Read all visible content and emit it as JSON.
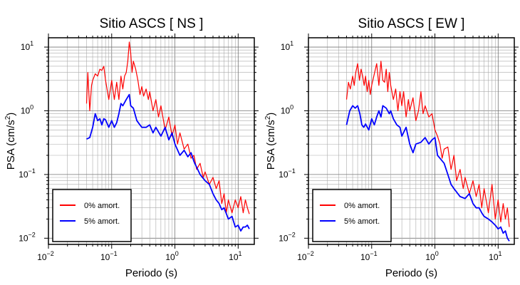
{
  "chart_data": [
    {
      "type": "line",
      "title": "Sitio ASCS [ NS ]",
      "xlabel": "Periodo (s)",
      "ylabel": "PSA (cm/s",
      "ylabel_sup": "2",
      "ylabel_tail": ")",
      "xscale": "log",
      "yscale": "log",
      "xlim": [
        0.01,
        18
      ],
      "ylim": [
        0.008,
        14
      ],
      "grid": true,
      "legend_position": "lower-left",
      "x_tick_labels": [
        {
          "value": 0.01,
          "base": "10",
          "exp": "−2"
        },
        {
          "value": 0.1,
          "base": "10",
          "exp": "−1"
        },
        {
          "value": 1,
          "base": "10",
          "exp": "0"
        },
        {
          "value": 10,
          "base": "10",
          "exp": "1"
        }
      ],
      "y_tick_labels": [
        {
          "value": 0.01,
          "base": "10",
          "exp": "−2"
        },
        {
          "value": 0.1,
          "base": "10",
          "exp": "−1"
        },
        {
          "value": 1,
          "base": "10",
          "exp": "0"
        },
        {
          "value": 10,
          "base": "10",
          "exp": "1"
        }
      ],
      "series": [
        {
          "name": "0% amort.",
          "color": "#ff0000",
          "x": [
            0.04,
            0.042,
            0.045,
            0.048,
            0.05,
            0.055,
            0.06,
            0.065,
            0.07,
            0.075,
            0.08,
            0.09,
            0.1,
            0.11,
            0.12,
            0.13,
            0.14,
            0.15,
            0.16,
            0.17,
            0.18,
            0.19,
            0.2,
            0.21,
            0.22,
            0.24,
            0.26,
            0.28,
            0.3,
            0.32,
            0.35,
            0.38,
            0.4,
            0.45,
            0.5,
            0.55,
            0.6,
            0.7,
            0.8,
            0.9,
            1.0,
            1.1,
            1.2,
            1.4,
            1.6,
            1.8,
            2.0,
            2.2,
            2.5,
            2.8,
            3.0,
            3.5,
            4.0,
            4.5,
            5.0,
            5.5,
            6.0,
            6.5,
            7.0,
            8.0,
            9.0,
            10.0,
            11.0,
            12.0,
            13.0,
            14.0,
            15.0
          ],
          "y": [
            1.3,
            4.0,
            1.0,
            2.5,
            3.0,
            3.8,
            3.5,
            4.5,
            4.3,
            5.0,
            3.0,
            1.5,
            3.0,
            1.5,
            2.8,
            1.5,
            3.5,
            2.2,
            3.5,
            4.0,
            6.0,
            12.0,
            8.0,
            4.0,
            6.0,
            4.5,
            3.0,
            1.8,
            2.4,
            1.7,
            2.2,
            1.5,
            2.0,
            1.0,
            1.5,
            0.8,
            1.2,
            0.5,
            0.8,
            0.4,
            0.6,
            0.3,
            0.45,
            0.25,
            0.3,
            0.18,
            0.2,
            0.12,
            0.15,
            0.09,
            0.11,
            0.07,
            0.09,
            0.06,
            0.08,
            0.035,
            0.05,
            0.025,
            0.04,
            0.025,
            0.04,
            0.03,
            0.045,
            0.025,
            0.04,
            0.03,
            0.024
          ]
        },
        {
          "name": "5% amort.",
          "color": "#0000ff",
          "x": [
            0.04,
            0.045,
            0.05,
            0.055,
            0.06,
            0.065,
            0.07,
            0.075,
            0.08,
            0.09,
            0.1,
            0.11,
            0.12,
            0.13,
            0.14,
            0.15,
            0.17,
            0.19,
            0.2,
            0.22,
            0.25,
            0.28,
            0.3,
            0.35,
            0.4,
            0.45,
            0.5,
            0.6,
            0.7,
            0.8,
            0.9,
            1.0,
            1.2,
            1.4,
            1.6,
            1.8,
            2.0,
            2.5,
            3.0,
            3.5,
            4.0,
            4.5,
            5.0,
            5.5,
            6.0,
            7.0,
            8.0,
            9.0,
            10.0,
            11.0,
            12.0,
            13.0,
            14.0,
            15.0
          ],
          "y": [
            0.36,
            0.38,
            0.55,
            0.9,
            0.7,
            0.75,
            0.6,
            0.75,
            0.72,
            0.55,
            0.7,
            0.55,
            0.65,
            0.9,
            1.3,
            1.2,
            1.5,
            1.8,
            1.2,
            1.1,
            0.7,
            0.6,
            0.55,
            0.55,
            0.6,
            0.45,
            0.55,
            0.4,
            0.55,
            0.35,
            0.45,
            0.3,
            0.2,
            0.24,
            0.19,
            0.22,
            0.16,
            0.1,
            0.08,
            0.07,
            0.05,
            0.04,
            0.035,
            0.028,
            0.03,
            0.02,
            0.022,
            0.015,
            0.016,
            0.013,
            0.015,
            0.015,
            0.016,
            0.014
          ]
        }
      ]
    },
    {
      "type": "line",
      "title": "Sitio ASCS [ EW ]",
      "xlabel": "Periodo (s)",
      "ylabel": "PSA (cm/s",
      "ylabel_sup": "2",
      "ylabel_tail": ")",
      "xscale": "log",
      "yscale": "log",
      "xlim": [
        0.01,
        18
      ],
      "ylim": [
        0.008,
        14
      ],
      "grid": true,
      "legend_position": "lower-left",
      "x_tick_labels": [
        {
          "value": 0.01,
          "base": "10",
          "exp": "−2"
        },
        {
          "value": 0.1,
          "base": "10",
          "exp": "−1"
        },
        {
          "value": 1,
          "base": "10",
          "exp": "0"
        },
        {
          "value": 10,
          "base": "10",
          "exp": "1"
        }
      ],
      "y_tick_labels": [
        {
          "value": 0.01,
          "base": "10",
          "exp": "−2"
        },
        {
          "value": 0.1,
          "base": "10",
          "exp": "−1"
        },
        {
          "value": 1,
          "base": "10",
          "exp": "0"
        },
        {
          "value": 10,
          "base": "10",
          "exp": "1"
        }
      ],
      "series": [
        {
          "name": "0% amort.",
          "color": "#ff0000",
          "x": [
            0.04,
            0.043,
            0.046,
            0.05,
            0.053,
            0.056,
            0.06,
            0.064,
            0.068,
            0.072,
            0.076,
            0.08,
            0.085,
            0.09,
            0.095,
            0.1,
            0.11,
            0.12,
            0.13,
            0.14,
            0.15,
            0.16,
            0.17,
            0.18,
            0.19,
            0.2,
            0.22,
            0.24,
            0.26,
            0.28,
            0.3,
            0.32,
            0.35,
            0.38,
            0.4,
            0.45,
            0.5,
            0.55,
            0.6,
            0.65,
            0.7,
            0.8,
            0.9,
            1.0,
            1.1,
            1.2,
            1.3,
            1.4,
            1.6,
            1.8,
            2.0,
            2.2,
            2.5,
            2.8,
            3.0,
            3.5,
            4.0,
            4.5,
            5.0,
            5.5,
            6.0,
            7.0,
            8.0,
            9.0,
            10.0,
            11.0,
            12.0,
            13.0,
            14.0,
            15.0
          ],
          "y": [
            1.5,
            2.8,
            2.2,
            3.5,
            2.5,
            4.0,
            5.5,
            3.0,
            4.5,
            3.5,
            2.5,
            3.5,
            2.0,
            3.0,
            1.8,
            2.5,
            3.8,
            5.5,
            2.5,
            6.0,
            3.0,
            2.8,
            4.5,
            2.0,
            4.0,
            2.5,
            1.5,
            2.2,
            1.0,
            2.0,
            1.2,
            2.0,
            0.8,
            1.5,
            1.0,
            1.6,
            0.7,
            1.0,
            2.0,
            0.9,
            1.2,
            0.8,
            0.9,
            0.5,
            0.4,
            0.3,
            0.18,
            0.25,
            0.27,
            0.12,
            0.2,
            0.08,
            0.12,
            0.06,
            0.09,
            0.05,
            0.08,
            0.045,
            0.07,
            0.03,
            0.06,
            0.025,
            0.07,
            0.02,
            0.04,
            0.018,
            0.035,
            0.02,
            0.03,
            0.015
          ]
        },
        {
          "name": "5% amort.",
          "color": "#0000ff",
          "x": [
            0.04,
            0.045,
            0.05,
            0.055,
            0.06,
            0.065,
            0.07,
            0.075,
            0.08,
            0.09,
            0.1,
            0.11,
            0.12,
            0.13,
            0.14,
            0.15,
            0.17,
            0.19,
            0.2,
            0.22,
            0.25,
            0.28,
            0.3,
            0.35,
            0.4,
            0.45,
            0.5,
            0.6,
            0.7,
            0.8,
            0.9,
            1.0,
            1.1,
            1.2,
            1.4,
            1.6,
            1.8,
            2.0,
            2.5,
            3.0,
            3.5,
            4.0,
            4.5,
            5.0,
            5.5,
            6.0,
            7.0,
            8.0,
            9.0,
            10.0,
            11.0,
            12.0,
            13.0,
            14.0,
            15.0
          ],
          "y": [
            0.6,
            1.0,
            1.2,
            1.1,
            1.2,
            0.9,
            0.6,
            0.55,
            0.62,
            0.5,
            0.75,
            0.6,
            0.8,
            1.0,
            0.8,
            1.2,
            1.1,
            0.9,
            1.0,
            0.75,
            0.6,
            0.55,
            0.4,
            0.55,
            0.3,
            0.22,
            0.3,
            0.32,
            0.38,
            0.3,
            0.35,
            0.38,
            0.2,
            0.18,
            0.15,
            0.1,
            0.07,
            0.06,
            0.045,
            0.042,
            0.05,
            0.035,
            0.03,
            0.03,
            0.025,
            0.022,
            0.02,
            0.018,
            0.016,
            0.014,
            0.015,
            0.012,
            0.013,
            0.01,
            0.009
          ]
        }
      ]
    }
  ]
}
